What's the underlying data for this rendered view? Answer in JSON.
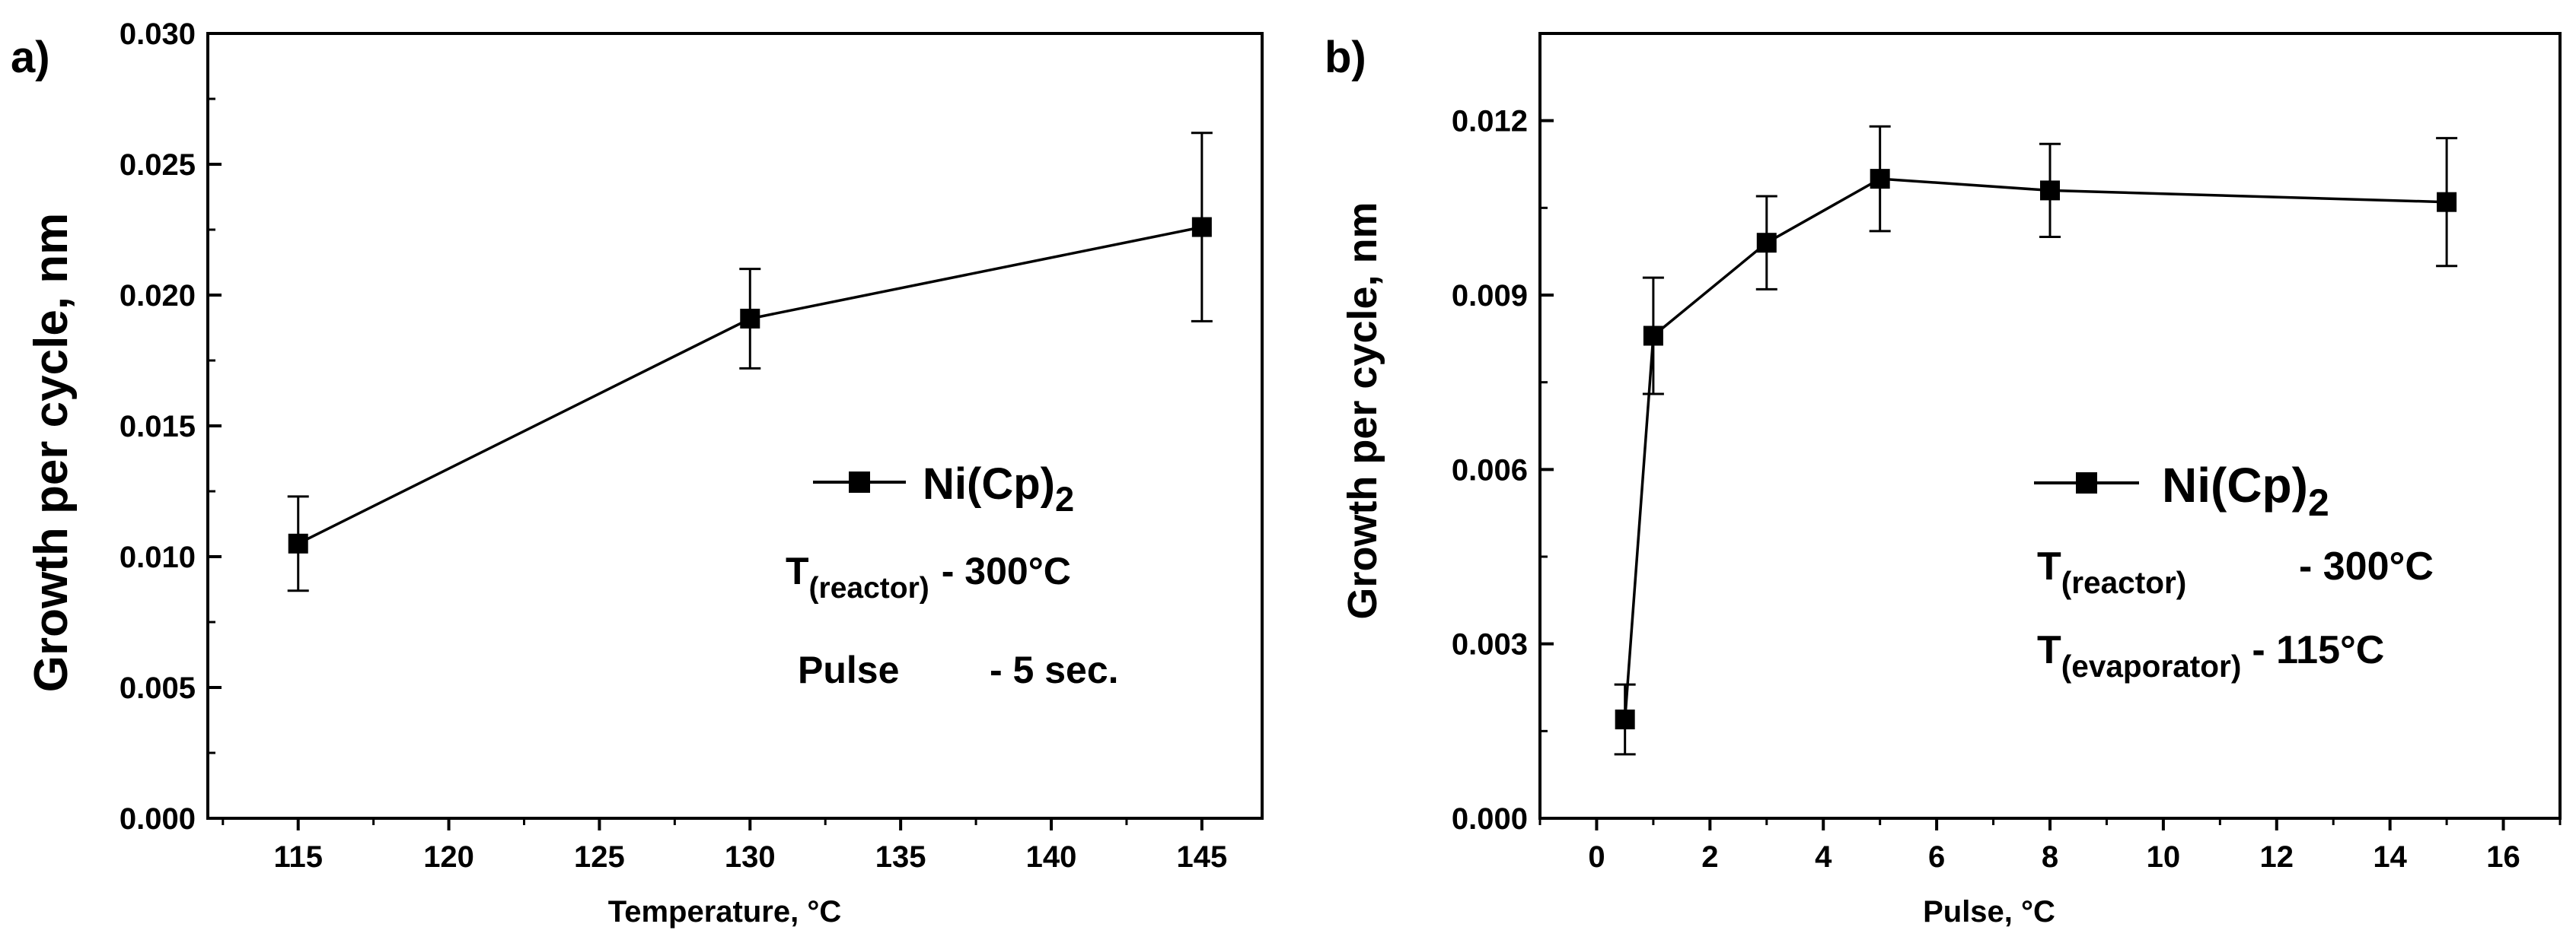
{
  "chart_data": [
    {
      "panel": "a)",
      "type": "line",
      "xlabel": "Temperature, °C",
      "ylabel": "Growth per cycle, nm",
      "xlim": [
        112,
        147
      ],
      "ylim": [
        0.0,
        0.03
      ],
      "x_ticks": [
        "115",
        "120",
        "125",
        "130",
        "135",
        "140",
        "145"
      ],
      "y_ticks": [
        "0.000",
        "0.005",
        "0.010",
        "0.015",
        "0.020",
        "0.025",
        "0.030"
      ],
      "series": [
        {
          "name": "Ni(Cp)2",
          "marker": "square",
          "x": [
            115,
            130,
            145
          ],
          "y": [
            0.0105,
            0.0191,
            0.0226
          ],
          "err_low": [
            0.0087,
            0.0172,
            0.019
          ],
          "err_high": [
            0.0123,
            0.021,
            0.0262
          ]
        }
      ],
      "legend": {
        "series_label_main": "Ni(Cp)",
        "series_label_sub": "2",
        "line1_main": "T",
        "line1_sub": "(reactor)",
        "line1_value": "- 300°C",
        "line2_label": "Pulse",
        "line2_value": "- 5 sec."
      }
    },
    {
      "panel": "b)",
      "type": "line",
      "xlabel": "Pulse, °C",
      "ylabel": "Growth per cycle, nm",
      "xlim": [
        -1,
        17
      ],
      "ylim": [
        0.0,
        0.0135
      ],
      "x_ticks": [
        "0",
        "2",
        "4",
        "6",
        "8",
        "10",
        "12",
        "14",
        "16"
      ],
      "y_ticks": [
        "0.000",
        "0.003",
        "0.006",
        "0.009",
        "0.012"
      ],
      "series": [
        {
          "name": "Ni(Cp)2",
          "marker": "square",
          "x": [
            0.5,
            1,
            3,
            5,
            8,
            15
          ],
          "y": [
            0.0017,
            0.0083,
            0.0099,
            0.011,
            0.0108,
            0.0106
          ],
          "err_low": [
            0.0011,
            0.0073,
            0.0091,
            0.0101,
            0.01,
            0.0095
          ],
          "err_high": [
            0.0023,
            0.0093,
            0.0107,
            0.0119,
            0.0116,
            0.0117
          ]
        }
      ],
      "legend": {
        "series_label_main": "Ni(Cp)",
        "series_label_sub": "2",
        "line1_main": "T",
        "line1_sub": "(reactor)",
        "line1_value": "- 300°C",
        "line2_main": "T",
        "line2_sub": "(evaporator)",
        "line2_value": "- 115°C"
      }
    }
  ]
}
